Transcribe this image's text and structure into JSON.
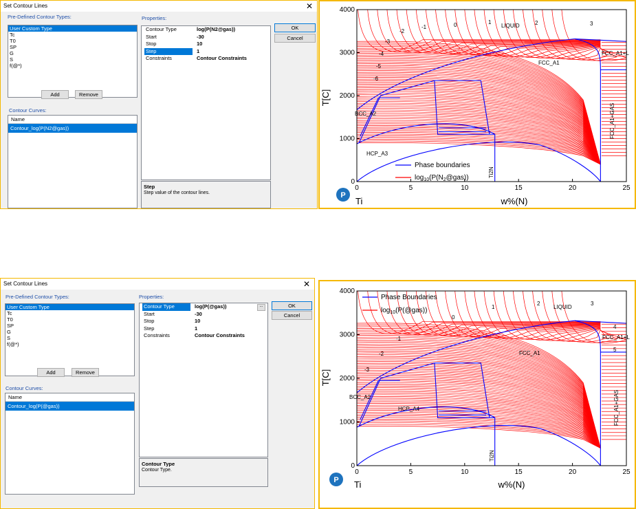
{
  "dialogs": [
    {
      "title": "Set Contour Lines",
      "close_symbol": "✕",
      "predefined_label": "Pre-Defined Contour Types:",
      "predefined_items": [
        "User Custom Type",
        "Tc",
        "T0",
        "SP",
        "G",
        "S",
        "f(@*)"
      ],
      "predefined_selected": 0,
      "add_label": "Add",
      "remove_label": "Remove",
      "curves_label": "Contour Curves:",
      "curves_col": "Name",
      "curve_item": "Contour_log(P(N2@gas))",
      "properties_label": "Properties:",
      "properties": [
        {
          "key": "Contour Type",
          "value": "log(P(N2@gas))"
        },
        {
          "key": "Start",
          "value": "-30"
        },
        {
          "key": "Stop",
          "value": "10"
        },
        {
          "key": "Step",
          "value": "1"
        },
        {
          "key": "Constraints",
          "value": "Contour Constraints"
        }
      ],
      "highlighted_property": 3,
      "desc_title": "Step",
      "desc_text": "Step value of the contour lines.",
      "ok_label": "OK",
      "cancel_label": "Cancel"
    },
    {
      "title": "Set Contour Lines",
      "close_symbol": "✕",
      "predefined_label": "Pre-Defined Contour Types:",
      "predefined_items": [
        "User Custom Type",
        "Tc",
        "T0",
        "SP",
        "G",
        "S",
        "f(@*)"
      ],
      "predefined_selected": 0,
      "add_label": "Add",
      "remove_label": "Remove",
      "curves_label": "Contour Curves:",
      "curves_col": "Name",
      "curve_item": "Contour_log(P(@gas))",
      "properties_label": "Properties:",
      "properties": [
        {
          "key": "Contour Type",
          "value": "log(P(@gas))"
        },
        {
          "key": "Start",
          "value": "-30"
        },
        {
          "key": "Stop",
          "value": "10"
        },
        {
          "key": "Step",
          "value": "1"
        },
        {
          "key": "Constraints",
          "value": "Contour Constraints"
        }
      ],
      "highlighted_property": 0,
      "ellipsis_label": "...",
      "desc_title": "Contour Type",
      "desc_text": "Contour Type.",
      "ok_label": "OK",
      "cancel_label": "Cancel"
    }
  ],
  "chart_data": [
    {
      "type": "line",
      "xlabel": "w%(N)",
      "ylabel": "T[C]",
      "xlim": [
        0,
        25
      ],
      "ylim": [
        0,
        4000
      ],
      "xticks": [
        "0",
        "5",
        "10",
        "15",
        "20",
        "25"
      ],
      "yticks": [
        "0",
        "1000",
        "2000",
        "3000",
        "4000"
      ],
      "corner_label": "Ti",
      "legend": {
        "position": "bottom-center",
        "items": [
          "Phase boundaries",
          "log10(P(N2@gas))"
        ]
      },
      "legend_parts": {
        "phase": "Phase boundaries",
        "log_prefix": "log",
        "log_sub": "10",
        "log_mid1": "(P(N",
        "log_sub2": "2",
        "log_mid2": "@gas))"
      },
      "phase_labels": [
        "LIQUID",
        "FCC_A1",
        "FCC_A1+L",
        "BCC_A2",
        "HCP_A3",
        "FCC_A1+GAS",
        "Ti2N"
      ],
      "contour_labels": [
        "-6",
        "-5",
        "-4",
        "-3",
        "-2",
        "-1",
        "0",
        "1",
        "2",
        "3"
      ],
      "series": [
        {
          "name": "Phase boundaries",
          "color": "#0000ff"
        },
        {
          "name": "log10(P(N2@gas))",
          "color": "#ff0000"
        }
      ]
    },
    {
      "type": "line",
      "xlabel": "w%(N)",
      "ylabel": "T[C]",
      "xlim": [
        0,
        25
      ],
      "ylim": [
        0,
        4000
      ],
      "xticks": [
        "0",
        "5",
        "10",
        "15",
        "20",
        "25"
      ],
      "yticks": [
        "0",
        "1000",
        "2000",
        "3000",
        "4000"
      ],
      "corner_label": "Ti",
      "legend": {
        "position": "top-left",
        "items": [
          "Phase Boundaries",
          "log10(P(@gas))"
        ]
      },
      "legend_parts": {
        "phase": "Phase Boundaries",
        "log_prefix": "log",
        "log_sub": "10",
        "log_rest": "(P(@gas))"
      },
      "phase_labels": [
        "LIQUID",
        "FCC_A1",
        "FCC_A1+L",
        "BCC_A2",
        "HCP_A4",
        "FCC_A1+GAS",
        "Ti2N"
      ],
      "contour_labels": [
        "-3",
        "-2",
        "-1",
        "0",
        "1",
        "2",
        "3",
        "4",
        "5"
      ],
      "series": [
        {
          "name": "Phase Boundaries",
          "color": "#0000ff"
        },
        {
          "name": "log10(P(@gas))",
          "color": "#ff0000"
        }
      ]
    }
  ]
}
